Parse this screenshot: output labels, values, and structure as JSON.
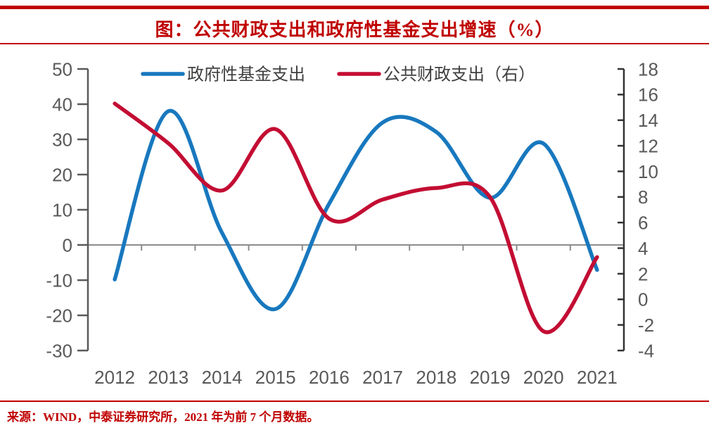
{
  "header": {
    "title": "图：公共财政支出和政府性基金支出增速（%）"
  },
  "footer": {
    "source": "来源：WIND，中泰证券研究所，2021 年为前 7 个月数据。"
  },
  "colors": {
    "accent_red_rules_and_text": "#c00000",
    "series_blue": "#1878be",
    "series_red": "#c30d33",
    "axis_text_gray": "#595959",
    "axis_line_gray": "#595959",
    "zero_line_gray": "#8c8c8c",
    "legend_text_gray": "#3f3f3f"
  },
  "chart_data": {
    "type": "line",
    "title": "公共财政支出和政府性基金支出增速（%）",
    "categories": [
      "2012",
      "2013",
      "2014",
      "2015",
      "2016",
      "2017",
      "2018",
      "2019",
      "2020",
      "2021"
    ],
    "series": [
      {
        "name": "政府性基金支出",
        "axis": "left",
        "color": "#1878be",
        "values": [
          -9.8,
          38.0,
          3.5,
          -18.2,
          11.7,
          34.8,
          32.1,
          13.4,
          28.8,
          -7.1
        ]
      },
      {
        "name": "公共财政支出（右）",
        "axis": "right",
        "color": "#c30d33",
        "values": [
          15.3,
          12.2,
          8.5,
          13.3,
          6.3,
          7.8,
          8.7,
          8.0,
          -2.5,
          3.3
        ]
      }
    ],
    "left_axis": {
      "min": -30,
      "max": 50,
      "step": 10,
      "ticks": [
        "50",
        "40",
        "30",
        "20",
        "10",
        "0",
        "-10",
        "-20",
        "-30"
      ]
    },
    "right_axis": {
      "min": -4,
      "max": 18,
      "step": 2,
      "ticks": [
        "18",
        "16",
        "14",
        "12",
        "10",
        "8",
        "6",
        "4",
        "2",
        "0",
        "-2",
        "-4"
      ]
    },
    "legend_position": "top-center",
    "grid": "zero-line-only",
    "line_style": "smoothed"
  }
}
